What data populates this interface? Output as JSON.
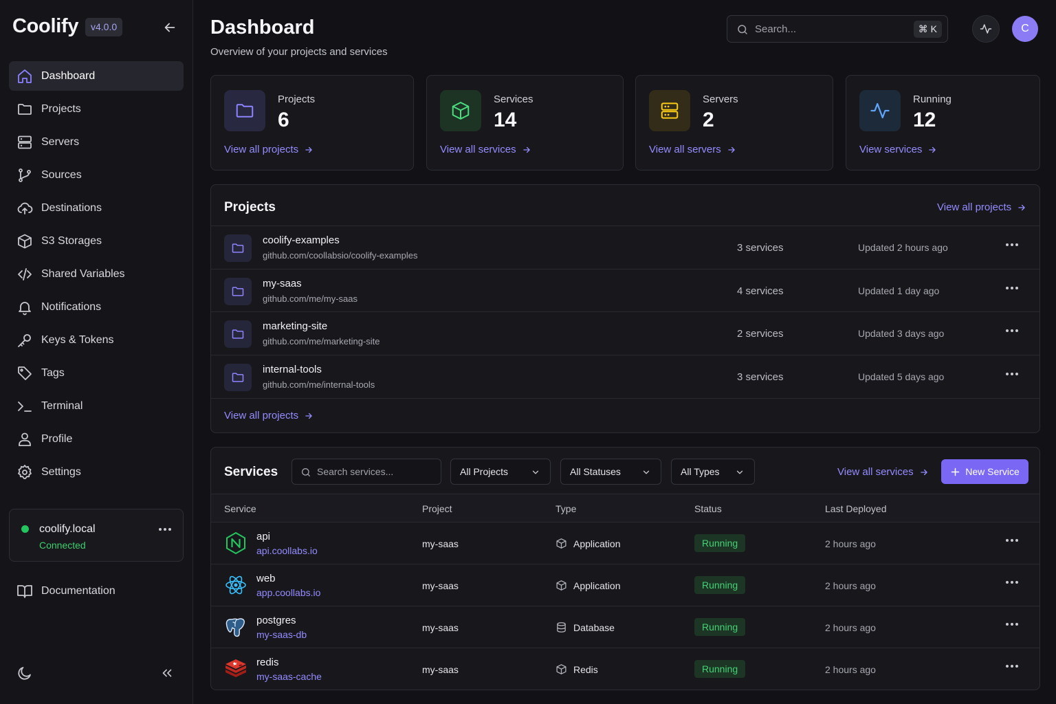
{
  "brand": {
    "name": "Coolify",
    "version": "v4.0.0"
  },
  "nav": [
    {
      "label": "Dashboard",
      "icon": "home-icon",
      "active": true
    },
    {
      "label": "Projects",
      "icon": "folder-icon"
    },
    {
      "label": "Servers",
      "icon": "server-icon"
    },
    {
      "label": "Sources",
      "icon": "git-branch-icon"
    },
    {
      "label": "Destinations",
      "icon": "cloud-upload-icon"
    },
    {
      "label": "S3 Storages",
      "icon": "box-icon"
    },
    {
      "label": "Shared Variables",
      "icon": "code-icon"
    },
    {
      "label": "Notifications",
      "icon": "bell-icon"
    },
    {
      "label": "Keys & Tokens",
      "icon": "key-icon"
    },
    {
      "label": "Tags",
      "icon": "tag-icon"
    },
    {
      "label": "Terminal",
      "icon": "terminal-icon"
    },
    {
      "label": "Profile",
      "icon": "user-icon"
    },
    {
      "label": "Settings",
      "icon": "gear-icon"
    }
  ],
  "server": {
    "name": "coolify.local",
    "status": "Connected",
    "status_color": "#22c55e"
  },
  "documentation": "Documentation",
  "header": {
    "title": "Dashboard",
    "subtitle": "Overview of your projects and services",
    "search_placeholder": "Search...",
    "shortcut": "⌘ K",
    "avatar_initial": "C"
  },
  "stats": [
    {
      "label": "Projects",
      "value": "6",
      "link": "View all projects",
      "icon": "folder-icon",
      "color": "#8e84ff"
    },
    {
      "label": "Services",
      "value": "14",
      "link": "View all services",
      "icon": "cube-icon",
      "color": "#4ade80"
    },
    {
      "label": "Servers",
      "value": "2",
      "link": "View all servers",
      "icon": "server-icon",
      "color": "#facc15"
    },
    {
      "label": "Running",
      "value": "12",
      "link": "View services",
      "icon": "activity-icon",
      "color": "#60a5fa"
    }
  ],
  "projects_panel": {
    "title": "Projects",
    "header_link": "View all projects",
    "footer_link": "View all projects",
    "rows": [
      {
        "name": "coolify-examples",
        "repo": "github.com/coollabsio/coolify-examples",
        "count": "3 services",
        "updated": "Updated 2 hours ago"
      },
      {
        "name": "my-saas",
        "repo": "github.com/me/my-saas",
        "count": "4 services",
        "updated": "Updated 1 day ago"
      },
      {
        "name": "marketing-site",
        "repo": "github.com/me/marketing-site",
        "count": "2 services",
        "updated": "Updated 3 days ago"
      },
      {
        "name": "internal-tools",
        "repo": "github.com/me/internal-tools",
        "count": "3 services",
        "updated": "Updated 5 days ago"
      }
    ]
  },
  "services_panel": {
    "title": "Services",
    "search_placeholder": "Search services...",
    "filters": [
      "All Projects",
      "All Statuses",
      "All Types"
    ],
    "view_all": "View all services",
    "new_button": "New Service",
    "columns": [
      "Service",
      "Project",
      "Type",
      "Status",
      "Last Deployed"
    ],
    "rows": [
      {
        "name": "api",
        "host": "api.coollabs.io",
        "project": "my-saas",
        "type": "Application",
        "type_icon": "cube-icon",
        "status": "Running",
        "deployed": "2 hours ago",
        "logo": "nuxt-logo-icon"
      },
      {
        "name": "web",
        "host": "app.coollabs.io",
        "project": "my-saas",
        "type": "Application",
        "type_icon": "cube-icon",
        "status": "Running",
        "deployed": "2 hours ago",
        "logo": "react-logo-icon"
      },
      {
        "name": "postgres",
        "host": "my-saas-db",
        "project": "my-saas",
        "type": "Database",
        "type_icon": "database-icon",
        "status": "Running",
        "deployed": "2 hours ago",
        "logo": "postgres-logo-icon"
      },
      {
        "name": "redis",
        "host": "my-saas-cache",
        "project": "my-saas",
        "type": "Redis",
        "type_icon": "cube-icon",
        "status": "Running",
        "deployed": "2 hours ago",
        "logo": "redis-logo-icon"
      }
    ]
  }
}
